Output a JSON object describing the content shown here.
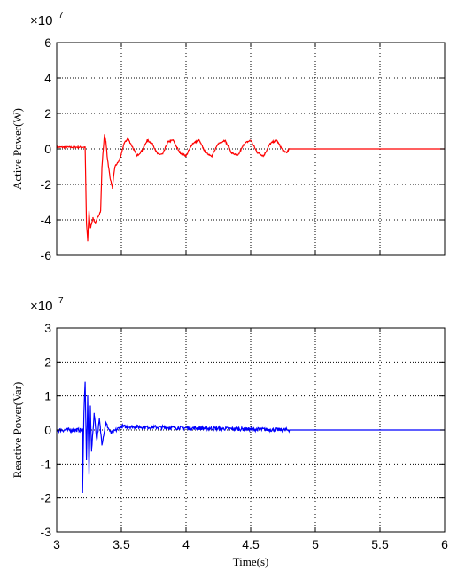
{
  "chart_data": [
    {
      "type": "line",
      "multiplier_base": "×10",
      "multiplier_exp": "7",
      "ylabel": "Active Power(W)",
      "xlabel": "",
      "xlim": [
        3,
        6
      ],
      "ylim": [
        -6,
        6
      ],
      "xticks": [
        3,
        3.5,
        4,
        4.5,
        5,
        5.5,
        6
      ],
      "yticks": [
        -6,
        -4,
        -2,
        0,
        2,
        4,
        6
      ],
      "show_xtick_labels": false,
      "grid": true,
      "line_color": "#ff0000",
      "series": [
        {
          "points": [
            [
              3.0,
              0.1
            ],
            [
              3.22,
              0.1
            ],
            [
              3.23,
              -4.2
            ],
            [
              3.24,
              -5.2
            ],
            [
              3.25,
              -3.5
            ],
            [
              3.26,
              -4.5
            ],
            [
              3.28,
              -3.9
            ],
            [
              3.3,
              -4.2
            ],
            [
              3.32,
              -3.8
            ],
            [
              3.34,
              -3.5
            ],
            [
              3.35,
              -1.0
            ],
            [
              3.36,
              0.0
            ],
            [
              3.37,
              0.8
            ],
            [
              3.38,
              0.4
            ],
            [
              3.39,
              -0.4
            ],
            [
              3.41,
              -1.5
            ],
            [
              3.43,
              -2.2
            ],
            [
              3.45,
              -1.0
            ],
            [
              3.48,
              -0.7
            ],
            [
              3.5,
              -0.3
            ],
            [
              3.52,
              0.3
            ],
            [
              3.55,
              0.6
            ],
            [
              3.58,
              0.2
            ],
            [
              3.62,
              -0.4
            ],
            [
              3.66,
              -0.1
            ],
            [
              3.7,
              0.5
            ],
            [
              3.74,
              0.3
            ],
            [
              3.78,
              -0.3
            ],
            [
              3.82,
              -0.3
            ],
            [
              3.86,
              0.4
            ],
            [
              3.9,
              0.5
            ],
            [
              3.95,
              -0.2
            ],
            [
              4.0,
              -0.4
            ],
            [
              4.05,
              0.3
            ],
            [
              4.1,
              0.5
            ],
            [
              4.15,
              -0.2
            ],
            [
              4.2,
              -0.4
            ],
            [
              4.25,
              0.3
            ],
            [
              4.3,
              0.5
            ],
            [
              4.35,
              -0.2
            ],
            [
              4.4,
              -0.4
            ],
            [
              4.45,
              0.3
            ],
            [
              4.5,
              0.5
            ],
            [
              4.55,
              -0.2
            ],
            [
              4.6,
              -0.4
            ],
            [
              4.65,
              0.3
            ],
            [
              4.7,
              0.5
            ],
            [
              4.75,
              -0.1
            ],
            [
              4.78,
              -0.2
            ],
            [
              4.8,
              0.0
            ],
            [
              6.0,
              0.0
            ]
          ]
        }
      ]
    },
    {
      "type": "line",
      "multiplier_base": "×10",
      "multiplier_exp": "7",
      "ylabel": "Reactive Power(Var)",
      "xlabel": "Time(s)",
      "xlim": [
        3,
        6
      ],
      "ylim": [
        -3,
        3
      ],
      "xticks": [
        3,
        3.5,
        4,
        4.5,
        5,
        5.5,
        6
      ],
      "yticks": [
        -3,
        -2,
        -1,
        0,
        1,
        2,
        3
      ],
      "show_xtick_labels": true,
      "grid": true,
      "line_color": "#0000ff",
      "series": [
        {
          "points": [
            [
              3.0,
              0.0
            ],
            [
              3.2,
              0.0
            ],
            [
              3.2,
              -1.8
            ],
            [
              3.21,
              0.5
            ],
            [
              3.22,
              1.4
            ],
            [
              3.23,
              -0.9
            ],
            [
              3.24,
              1.0
            ],
            [
              3.25,
              -1.3
            ],
            [
              3.26,
              0.7
            ],
            [
              3.27,
              -0.6
            ],
            [
              3.29,
              0.5
            ],
            [
              3.31,
              -0.3
            ],
            [
              3.33,
              0.3
            ],
            [
              3.35,
              -0.4
            ],
            [
              3.38,
              0.2
            ],
            [
              3.42,
              -0.1
            ],
            [
              3.5,
              0.1
            ],
            [
              4.8,
              0.0
            ],
            [
              6.0,
              0.0
            ]
          ]
        }
      ]
    }
  ]
}
